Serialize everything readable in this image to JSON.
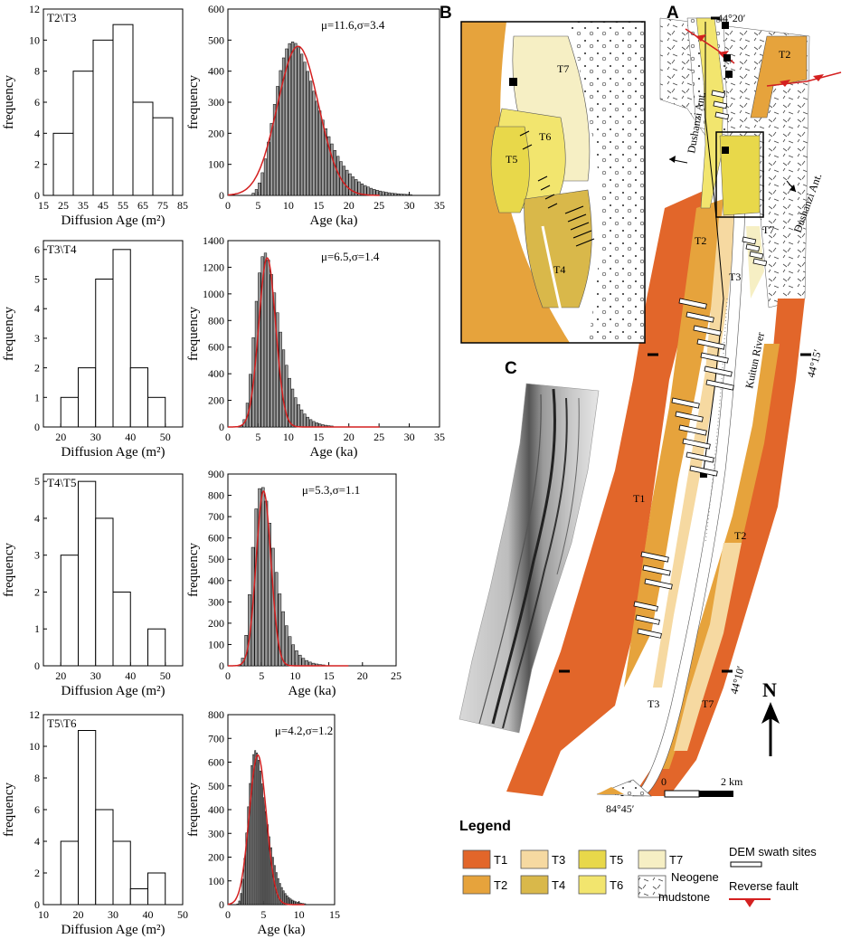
{
  "panels": {
    "a": "A",
    "b": "B",
    "c": "C"
  },
  "chart_data": [
    {
      "type": "bar",
      "panel_label": "T2\\T3",
      "xlabel": "Diffusion Age (m²)",
      "ylabel": "frequency",
      "bins": [
        20,
        30,
        40,
        50,
        60,
        70
      ],
      "bin_width": 10,
      "values": [
        4,
        8,
        10,
        11,
        6,
        5
      ],
      "xlim": [
        15,
        85
      ],
      "ylim": [
        0,
        12
      ],
      "xticks": [
        "15",
        "25",
        "35",
        "45",
        "55",
        "65",
        "75",
        "85"
      ],
      "yticks": [
        "0",
        "2",
        "4",
        "6",
        "8",
        "10",
        "12"
      ]
    },
    {
      "type": "bar",
      "annotation": "μ=11.6,σ=3.4",
      "xlabel": "Age (ka)",
      "ylabel": "frequency",
      "xlim": [
        0,
        35
      ],
      "ylim": [
        0,
        600
      ],
      "bin_width": 0.5,
      "fit": {
        "type": "normal",
        "mu": 11.6,
        "sigma": 3.4,
        "peak": 480
      },
      "xticks": [
        "0",
        "5",
        "10",
        "15",
        "20",
        "25",
        "30",
        "35"
      ],
      "yticks": [
        "0",
        "100",
        "200",
        "300",
        "400",
        "500",
        "600"
      ]
    },
    {
      "type": "bar",
      "panel_label": "T3\\T4",
      "xlabel": "Diffusion Age (m²)",
      "ylabel": "frequency",
      "bins": [
        20,
        25,
        30,
        35,
        40,
        45
      ],
      "bin_width": 5,
      "values": [
        1,
        2,
        5,
        6,
        2,
        1
      ],
      "xlim": [
        15,
        55
      ],
      "ylim": [
        0,
        6.3
      ],
      "xticks": [
        "20",
        "30",
        "40",
        "50"
      ],
      "yticks": [
        "0",
        "1",
        "2",
        "3",
        "4",
        "5",
        "6"
      ]
    },
    {
      "type": "bar",
      "annotation": "μ=6.5,σ=1.4",
      "xlabel": "Age (ka)",
      "ylabel": "frequency",
      "xlim": [
        0,
        35
      ],
      "ylim": [
        0,
        1400
      ],
      "bin_width": 0.5,
      "fit": {
        "type": "normal",
        "mu": 6.5,
        "sigma": 1.4,
        "peak": 1270
      },
      "xticks": [
        "0",
        "5",
        "10",
        "15",
        "20",
        "25",
        "30",
        "35"
      ],
      "yticks": [
        "0",
        "200",
        "400",
        "600",
        "800",
        "1000",
        "1200",
        "1400"
      ]
    },
    {
      "type": "bar",
      "panel_label": "T4\\T5",
      "xlabel": "Diffusion Age (m²)",
      "ylabel": "frequency",
      "bins": [
        20,
        25,
        30,
        35,
        40,
        45
      ],
      "bin_width": 5,
      "values": [
        3,
        5,
        4,
        2,
        0,
        1
      ],
      "xlim": [
        15,
        55
      ],
      "ylim": [
        0,
        5.2
      ],
      "xticks": [
        "20",
        "30",
        "40",
        "50"
      ],
      "yticks": [
        "0",
        "1",
        "2",
        "3",
        "4",
        "5"
      ]
    },
    {
      "type": "bar",
      "annotation": "μ=5.3,σ=1.1",
      "xlabel": "Age (ka)",
      "ylabel": "frequency",
      "xlim": [
        0,
        25
      ],
      "ylim": [
        0,
        900
      ],
      "bin_width": 0.5,
      "fit": {
        "type": "normal",
        "mu": 5.3,
        "sigma": 1.1,
        "peak": 820
      },
      "xticks": [
        "0",
        "5",
        "10",
        "15",
        "20",
        "25"
      ],
      "yticks": [
        "0",
        "100",
        "200",
        "300",
        "400",
        "500",
        "600",
        "700",
        "800",
        "900"
      ]
    },
    {
      "type": "bar",
      "panel_label": "T5\\T6",
      "xlabel": "Diffusion Age (m²)",
      "ylabel": "frequency",
      "bins": [
        15,
        20,
        25,
        30,
        35,
        40
      ],
      "bin_width": 5,
      "values": [
        4,
        11,
        6,
        4,
        1,
        2
      ],
      "xlim": [
        10,
        50
      ],
      "ylim": [
        0,
        12
      ],
      "xticks": [
        "10",
        "20",
        "30",
        "40",
        "50"
      ],
      "yticks": [
        "0",
        "2",
        "4",
        "6",
        "8",
        "10",
        "12"
      ]
    },
    {
      "type": "bar",
      "annotation": "μ=4.2,σ=1.2",
      "xlabel": "Age (ka)",
      "ylabel": "frequency",
      "xlim": [
        0,
        15
      ],
      "ylim": [
        0,
        800
      ],
      "bin_width": 0.25,
      "fit": {
        "type": "normal",
        "mu": 4.2,
        "sigma": 1.2,
        "peak": 630
      },
      "xticks": [
        "0",
        "5",
        "10",
        "15"
      ],
      "yticks": [
        "0",
        "100",
        "200",
        "300",
        "400",
        "500",
        "600",
        "700",
        "800"
      ]
    }
  ],
  "map": {
    "coords": {
      "top": "44°20′",
      "east1": "44°15′",
      "east2": "44°10′",
      "bottom": "84°45′"
    },
    "units": [
      "T1",
      "T2",
      "T3",
      "T4",
      "T5",
      "T6",
      "T7"
    ],
    "labels": {
      "t1": "T1",
      "t2a": "T2",
      "t2b": "T2",
      "t2c": "T2",
      "t3a": "T3",
      "t3b": "T3",
      "t7a": "T7",
      "t7b": "T7"
    },
    "river": "Kuitun River",
    "ant1": "Dushanzi Ant.",
    "ant2": "Dushanzi Ant.",
    "north": "N",
    "scale": {
      "zero": "0",
      "km": "2 km"
    }
  },
  "inset_b": {
    "t7": "T7",
    "t6": "T6",
    "t5": "T5",
    "t4": "T4"
  },
  "legend": {
    "title": "Legend",
    "items": [
      {
        "label": "T1",
        "color": "#e2662a"
      },
      {
        "label": "T3",
        "color": "#f6d9a1"
      },
      {
        "label": "T5",
        "color": "#e8d84a"
      },
      {
        "label": "T7",
        "color": "#f6efc4"
      },
      {
        "label": "T2",
        "color": "#e6a33c"
      },
      {
        "label": "T4",
        "color": "#d9b84a"
      },
      {
        "label": "T6",
        "color": "#f2e56e"
      }
    ],
    "neogene_a": "Neogene",
    "neogene_b": "mudstone",
    "swath": "DEM swath sites",
    "fault": "Reverse fault"
  }
}
